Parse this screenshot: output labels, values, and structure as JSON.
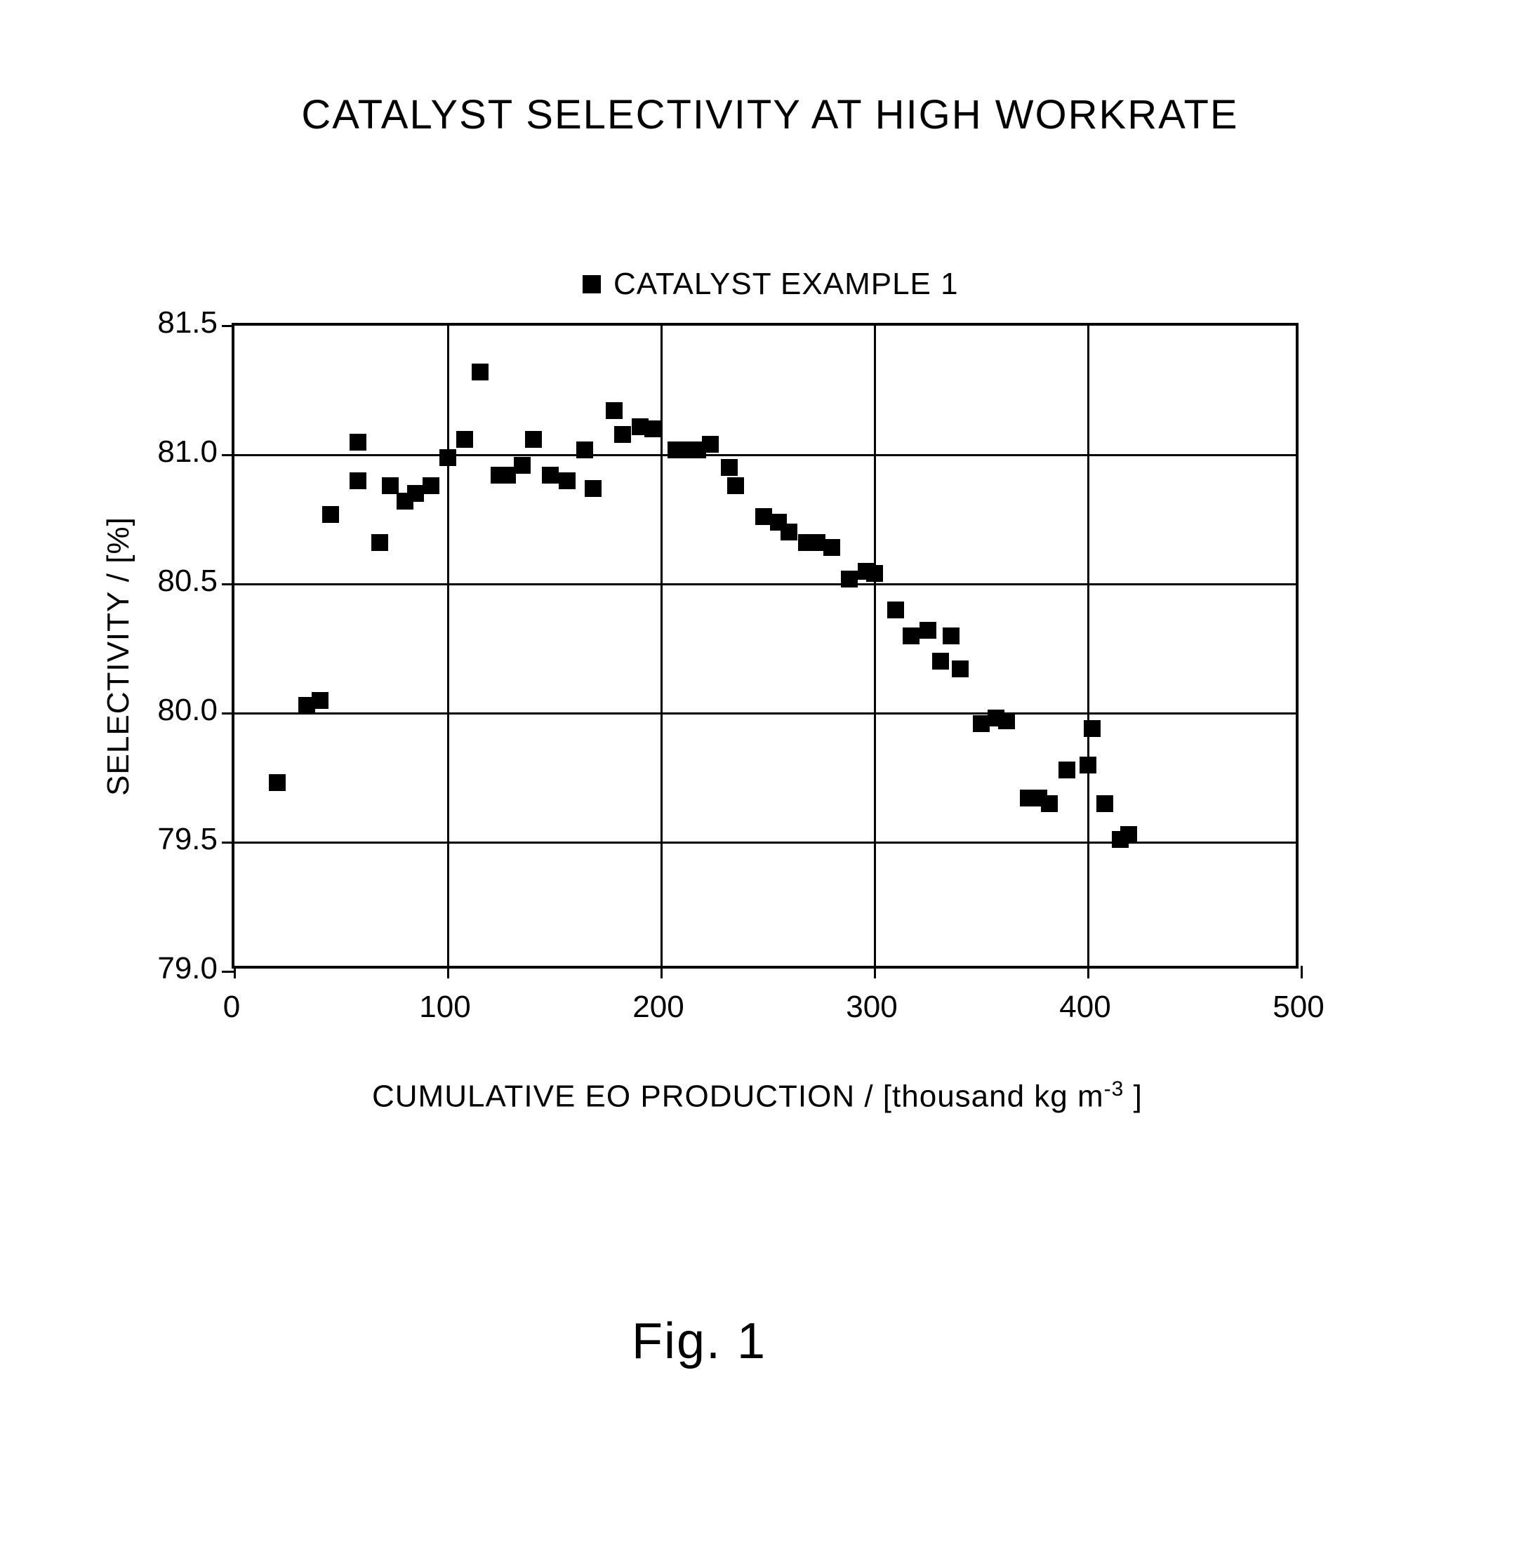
{
  "chart": {
    "type": "scatter",
    "title": "CATALYST SELECTIVITY AT HIGH WORKRATE",
    "legend_label": "CATALYST EXAMPLE 1",
    "x_axis_title_pre": "CUMULATIVE EO PRODUCTION / [thousand kg m",
    "x_axis_title_sup": "-3",
    "x_axis_title_post": " ]",
    "y_axis_title": "SELECTIVITY / [%]",
    "figure_label": "Fig. 1",
    "xlim": [
      0,
      500
    ],
    "ylim": [
      79.0,
      81.5
    ],
    "xticks": [
      0,
      100,
      200,
      300,
      400,
      500
    ],
    "yticks": [
      79.0,
      79.5,
      80.0,
      80.5,
      81.0,
      81.5
    ],
    "ytick_labels": [
      "79.0",
      "79.5",
      "80.0",
      "80.5",
      "81.0",
      "81.5"
    ],
    "vgrid": [
      100,
      200,
      300,
      400
    ],
    "hgrid": [
      79.5,
      80.0,
      80.5,
      81.0
    ],
    "marker_color": "#000000",
    "marker_size": 24,
    "background_color": "#ffffff",
    "grid_color": "#000000",
    "title_fontsize": 58,
    "label_fontsize": 44,
    "data": [
      [
        20,
        79.73
      ],
      [
        34,
        80.03
      ],
      [
        40,
        80.05
      ],
      [
        45,
        80.77
      ],
      [
        58,
        80.9
      ],
      [
        58,
        81.05
      ],
      [
        68,
        80.66
      ],
      [
        73,
        80.88
      ],
      [
        80,
        80.82
      ],
      [
        85,
        80.85
      ],
      [
        92,
        80.88
      ],
      [
        100,
        80.99
      ],
      [
        108,
        81.06
      ],
      [
        115,
        81.32
      ],
      [
        124,
        80.92
      ],
      [
        128,
        80.92
      ],
      [
        135,
        80.96
      ],
      [
        140,
        81.06
      ],
      [
        148,
        80.92
      ],
      [
        156,
        80.9
      ],
      [
        164,
        81.02
      ],
      [
        168,
        80.87
      ],
      [
        178,
        81.17
      ],
      [
        182,
        81.08
      ],
      [
        190,
        81.11
      ],
      [
        196,
        81.1
      ],
      [
        207,
        81.02
      ],
      [
        212,
        81.02
      ],
      [
        217,
        81.02
      ],
      [
        223,
        81.04
      ],
      [
        232,
        80.95
      ],
      [
        235,
        80.88
      ],
      [
        248,
        80.76
      ],
      [
        255,
        80.74
      ],
      [
        260,
        80.7
      ],
      [
        268,
        80.66
      ],
      [
        273,
        80.66
      ],
      [
        280,
        80.64
      ],
      [
        288,
        80.52
      ],
      [
        296,
        80.55
      ],
      [
        300,
        80.54
      ],
      [
        310,
        80.4
      ],
      [
        317,
        80.3
      ],
      [
        325,
        80.32
      ],
      [
        331,
        80.2
      ],
      [
        336,
        80.3
      ],
      [
        340,
        80.17
      ],
      [
        350,
        79.96
      ],
      [
        357,
        79.98
      ],
      [
        362,
        79.97
      ],
      [
        372,
        79.67
      ],
      [
        377,
        79.67
      ],
      [
        382,
        79.65
      ],
      [
        390,
        79.78
      ],
      [
        400,
        79.8
      ],
      [
        402,
        79.94
      ],
      [
        408,
        79.65
      ],
      [
        415,
        79.51
      ],
      [
        419,
        79.53
      ]
    ]
  }
}
